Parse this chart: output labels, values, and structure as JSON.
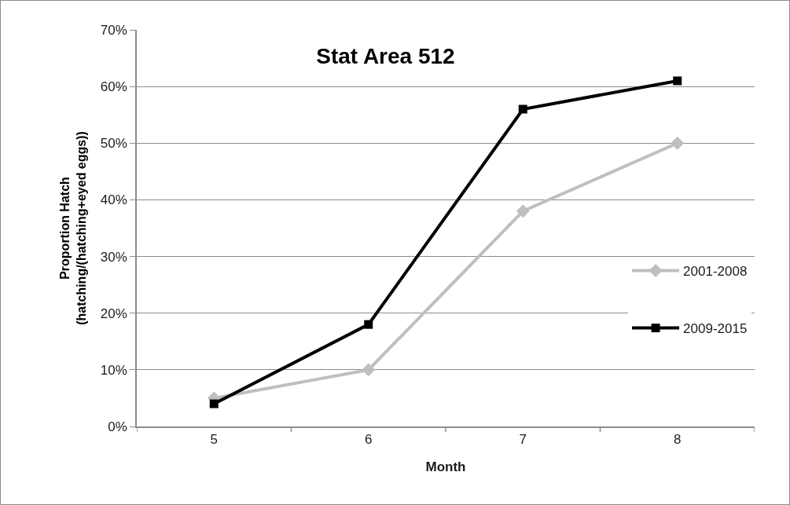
{
  "chart_data": {
    "type": "line",
    "title": "Stat Area 512",
    "xlabel": "Month",
    "ylabel": "Proportion Hatch\n(hatching/(hatching+eyed eggs))",
    "categories": [
      "5",
      "6",
      "7",
      "8"
    ],
    "series": [
      {
        "name": "2001-2008",
        "color": "#bfbfbf",
        "marker": "diamond",
        "values": [
          5,
          10,
          38,
          50
        ]
      },
      {
        "name": "2009-2015",
        "color": "#000000",
        "marker": "square",
        "values": [
          4,
          18,
          56,
          61
        ]
      }
    ],
    "ylim": [
      0,
      70
    ],
    "yticks": [
      {
        "value": 0,
        "label": "0%"
      },
      {
        "value": 10,
        "label": "10%"
      },
      {
        "value": 20,
        "label": "20%"
      },
      {
        "value": 30,
        "label": "30%"
      },
      {
        "value": 40,
        "label": "40%"
      },
      {
        "value": 50,
        "label": "50%"
      },
      {
        "value": 60,
        "label": "60%"
      },
      {
        "value": 70,
        "label": "70%"
      }
    ],
    "grid": "y",
    "legend": "right"
  }
}
